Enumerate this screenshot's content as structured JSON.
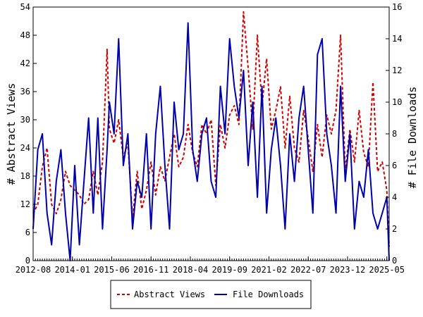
{
  "chart_data": {
    "type": "line",
    "title": "",
    "xlabel": "",
    "ylabel": "# Abstract Views",
    "y2label": "# File Downloads",
    "x_tick_labels": [
      "2012-08",
      "2014-01",
      "2015-06",
      "2016-11",
      "2018-04",
      "2019-09",
      "2021-02",
      "2022-07",
      "2023-12",
      "2025-05"
    ],
    "xlim": [
      "2012-08",
      "2025-06"
    ],
    "ylim": [
      0,
      54
    ],
    "y_ticks": [
      0,
      6,
      12,
      18,
      24,
      30,
      36,
      42,
      48,
      54
    ],
    "y2lim": [
      0,
      16
    ],
    "y2_ticks": [
      0,
      2,
      4,
      6,
      8,
      10,
      12,
      14,
      16
    ],
    "grid": false,
    "legend_placement": "bottom-center",
    "series": [
      {
        "name": "Abstract Views",
        "axis": "left",
        "color": "#cc0000",
        "style": "dashed",
        "points": [
          [
            "2012-08",
            10
          ],
          [
            "2012-10",
            12
          ],
          [
            "2012-12",
            20
          ],
          [
            "2013-02",
            24
          ],
          [
            "2013-04",
            12
          ],
          [
            "2013-06",
            10
          ],
          [
            "2013-08",
            13
          ],
          [
            "2013-10",
            19
          ],
          [
            "2013-12",
            16
          ],
          [
            "2014-02",
            15
          ],
          [
            "2014-04",
            14
          ],
          [
            "2014-06",
            12
          ],
          [
            "2014-08",
            13
          ],
          [
            "2014-10",
            19
          ],
          [
            "2014-12",
            14
          ],
          [
            "2015-02",
            21
          ],
          [
            "2015-04",
            45
          ],
          [
            "2015-05",
            28
          ],
          [
            "2015-07",
            25
          ],
          [
            "2015-09",
            30
          ],
          [
            "2015-11",
            22
          ],
          [
            "2016-01",
            25
          ],
          [
            "2016-03",
            9
          ],
          [
            "2016-05",
            19
          ],
          [
            "2016-07",
            11
          ],
          [
            "2016-09",
            15
          ],
          [
            "2016-11",
            21
          ],
          [
            "2017-01",
            14
          ],
          [
            "2017-03",
            20
          ],
          [
            "2017-05",
            17
          ],
          [
            "2017-07",
            22
          ],
          [
            "2017-09",
            27
          ],
          [
            "2017-11",
            20
          ],
          [
            "2018-01",
            22
          ],
          [
            "2018-03",
            29
          ],
          [
            "2018-05",
            23
          ],
          [
            "2018-07",
            20
          ],
          [
            "2018-09",
            29
          ],
          [
            "2018-11",
            27
          ],
          [
            "2019-01",
            30
          ],
          [
            "2019-03",
            16
          ],
          [
            "2019-05",
            29
          ],
          [
            "2019-07",
            24
          ],
          [
            "2019-09",
            31
          ],
          [
            "2019-11",
            33
          ],
          [
            "2020-01",
            29
          ],
          [
            "2020-03",
            53
          ],
          [
            "2020-05",
            41
          ],
          [
            "2020-07",
            28
          ],
          [
            "2020-09",
            48
          ],
          [
            "2020-11",
            33
          ],
          [
            "2021-01",
            43
          ],
          [
            "2021-03",
            28
          ],
          [
            "2021-05",
            32
          ],
          [
            "2021-07",
            37
          ],
          [
            "2021-09",
            24
          ],
          [
            "2021-11",
            35
          ],
          [
            "2022-01",
            24
          ],
          [
            "2022-03",
            21
          ],
          [
            "2022-05",
            32
          ],
          [
            "2022-07",
            26
          ],
          [
            "2022-09",
            19
          ],
          [
            "2022-11",
            29
          ],
          [
            "2023-01",
            22
          ],
          [
            "2023-03",
            31
          ],
          [
            "2023-05",
            27
          ],
          [
            "2023-07",
            32
          ],
          [
            "2023-09",
            48
          ],
          [
            "2023-11",
            19
          ],
          [
            "2024-01",
            28
          ],
          [
            "2024-03",
            21
          ],
          [
            "2024-05",
            32
          ],
          [
            "2024-07",
            23
          ],
          [
            "2024-09",
            20
          ],
          [
            "2024-11",
            38
          ],
          [
            "2025-01",
            19
          ],
          [
            "2025-03",
            21
          ],
          [
            "2025-05",
            15
          ],
          [
            "2025-06",
            3
          ]
        ]
      },
      {
        "name": "File Downloads",
        "axis": "right",
        "color": "#0000aa",
        "style": "solid",
        "points": [
          [
            "2012-08",
            2
          ],
          [
            "2012-10",
            7
          ],
          [
            "2012-12",
            8
          ],
          [
            "2013-02",
            3
          ],
          [
            "2013-04",
            1
          ],
          [
            "2013-06",
            5
          ],
          [
            "2013-08",
            7
          ],
          [
            "2013-10",
            3
          ],
          [
            "2013-12",
            0
          ],
          [
            "2014-02",
            6
          ],
          [
            "2014-04",
            1
          ],
          [
            "2014-06",
            5
          ],
          [
            "2014-08",
            9
          ],
          [
            "2014-10",
            3
          ],
          [
            "2014-12",
            9
          ],
          [
            "2015-02",
            2
          ],
          [
            "2015-04",
            7
          ],
          [
            "2015-05",
            10
          ],
          [
            "2015-07",
            8
          ],
          [
            "2015-09",
            14
          ],
          [
            "2015-11",
            6
          ],
          [
            "2016-01",
            8
          ],
          [
            "2016-03",
            2
          ],
          [
            "2016-05",
            5
          ],
          [
            "2016-07",
            4
          ],
          [
            "2016-09",
            8
          ],
          [
            "2016-11",
            2
          ],
          [
            "2017-01",
            8
          ],
          [
            "2017-03",
            11
          ],
          [
            "2017-05",
            6
          ],
          [
            "2017-07",
            2
          ],
          [
            "2017-09",
            10
          ],
          [
            "2017-11",
            7
          ],
          [
            "2018-01",
            8
          ],
          [
            "2018-03",
            15
          ],
          [
            "2018-05",
            7
          ],
          [
            "2018-07",
            5
          ],
          [
            "2018-09",
            8
          ],
          [
            "2018-11",
            9
          ],
          [
            "2019-01",
            5
          ],
          [
            "2019-03",
            4
          ],
          [
            "2019-05",
            11
          ],
          [
            "2019-07",
            8
          ],
          [
            "2019-09",
            14
          ],
          [
            "2019-11",
            11
          ],
          [
            "2020-01",
            9
          ],
          [
            "2020-03",
            12
          ],
          [
            "2020-05",
            6
          ],
          [
            "2020-07",
            10
          ],
          [
            "2020-09",
            4
          ],
          [
            "2020-11",
            11
          ],
          [
            "2021-01",
            3
          ],
          [
            "2021-03",
            7
          ],
          [
            "2021-05",
            9
          ],
          [
            "2021-07",
            6
          ],
          [
            "2021-09",
            2
          ],
          [
            "2021-11",
            8
          ],
          [
            "2022-01",
            5
          ],
          [
            "2022-03",
            9
          ],
          [
            "2022-05",
            11
          ],
          [
            "2022-07",
            7
          ],
          [
            "2022-09",
            3
          ],
          [
            "2022-11",
            13
          ],
          [
            "2023-01",
            14
          ],
          [
            "2023-03",
            8
          ],
          [
            "2023-05",
            6
          ],
          [
            "2023-07",
            3
          ],
          [
            "2023-09",
            11
          ],
          [
            "2023-11",
            5
          ],
          [
            "2024-01",
            8
          ],
          [
            "2024-03",
            2
          ],
          [
            "2024-05",
            5
          ],
          [
            "2024-07",
            4
          ],
          [
            "2024-09",
            7
          ],
          [
            "2024-11",
            3
          ],
          [
            "2025-01",
            2
          ],
          [
            "2025-03",
            3
          ],
          [
            "2025-05",
            4
          ],
          [
            "2025-06",
            0
          ]
        ]
      }
    ]
  }
}
